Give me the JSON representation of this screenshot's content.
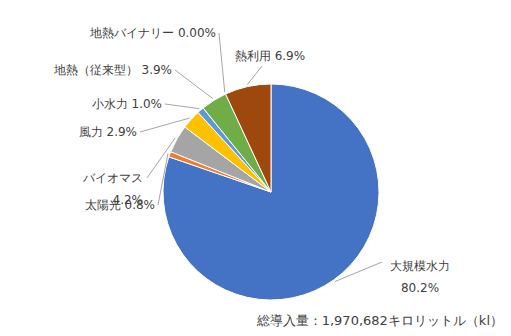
{
  "chart_data": {
    "type": "pie",
    "categories": [
      "大規模水力",
      "太陽光",
      "バイオマス",
      "風力",
      "小水力",
      "地熱（従来型）",
      "地熱バイナリー",
      "熱利用"
    ],
    "values": [
      80.2,
      0.8,
      4.2,
      2.9,
      1.0,
      3.9,
      0,
      6.9
    ],
    "value_labels": [
      "80.2%",
      "0.8%",
      "4.2%",
      "2.9%",
      "1.0%",
      "3.9%",
      "0.00%",
      "6.9%"
    ],
    "colors": [
      "#4472c4",
      "#ed7d31",
      "#a5a5a5",
      "#ffc000",
      "#5b9bd5",
      "#70ad47",
      "#264478",
      "#9e480e"
    ],
    "data_labels": true,
    "annotations": [
      "総導入量：1,970,682キロリットル（kl）"
    ]
  }
}
